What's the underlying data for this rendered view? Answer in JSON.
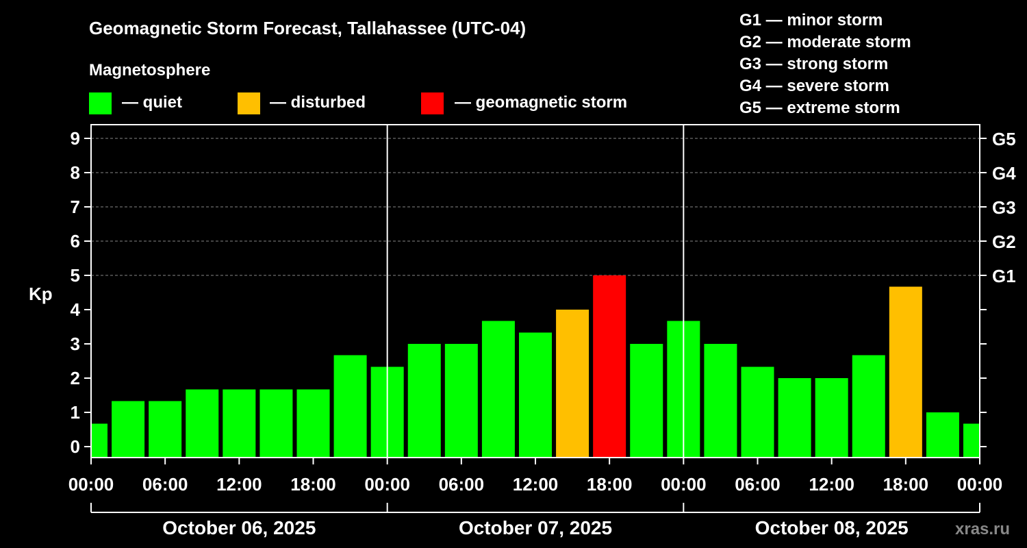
{
  "chart_data": {
    "type": "bar",
    "title": "Geomagnetic Storm Forecast, Tallahassee (UTC-04)",
    "ylabel": "Kp",
    "ylim": [
      0,
      9
    ],
    "yticks": [
      "0",
      "1",
      "2",
      "3",
      "4",
      "5",
      "6",
      "7",
      "8",
      "9"
    ],
    "gscale": [
      {
        "label": "G1",
        "kp": 5
      },
      {
        "label": "G2",
        "kp": 6
      },
      {
        "label": "G3",
        "kp": 7
      },
      {
        "label": "G4",
        "kp": 8
      },
      {
        "label": "G5",
        "kp": 9
      }
    ],
    "legend_title": "Magnetosphere",
    "legend": [
      {
        "label": "— quiet",
        "color": "#00ff00"
      },
      {
        "label": "— disturbed",
        "color": "#ffbf00"
      },
      {
        "label": "— geomagnetic storm",
        "color": "#ff0000"
      }
    ],
    "gscale_legend": [
      "G1 — minor storm",
      "G2 — moderate storm",
      "G3 — strong storm",
      "G4 — severe storm",
      "G5 — extreme storm"
    ],
    "xticks": [
      "00:00",
      "06:00",
      "12:00",
      "18:00",
      "00:00",
      "06:00",
      "12:00",
      "18:00",
      "00:00",
      "06:00",
      "12:00",
      "18:00",
      "00:00"
    ],
    "days": [
      "October 06, 2025",
      "October 07, 2025",
      "October 08, 2025"
    ],
    "series": [
      {
        "name": "Kp",
        "values": [
          0.67,
          1.33,
          1.33,
          1.67,
          1.67,
          1.67,
          1.67,
          2.67,
          2.33,
          3.0,
          3.0,
          3.67,
          3.33,
          4.0,
          5.0,
          3.0,
          3.67,
          3.0,
          2.33,
          2.0,
          2.0,
          2.67,
          4.67,
          1.0,
          0.67
        ]
      }
    ],
    "status": [
      "quiet",
      "quiet",
      "quiet",
      "quiet",
      "quiet",
      "quiet",
      "quiet",
      "quiet",
      "quiet",
      "quiet",
      "quiet",
      "quiet",
      "quiet",
      "disturbed",
      "storm",
      "quiet",
      "quiet",
      "quiet",
      "quiet",
      "quiet",
      "quiet",
      "quiet",
      "disturbed",
      "quiet",
      "quiet"
    ],
    "colors": {
      "quiet": "#00ff00",
      "disturbed": "#ffbf00",
      "storm": "#ff0000",
      "grid": "#888888",
      "axis": "#ffffff"
    }
  },
  "watermark": "xras.ru"
}
